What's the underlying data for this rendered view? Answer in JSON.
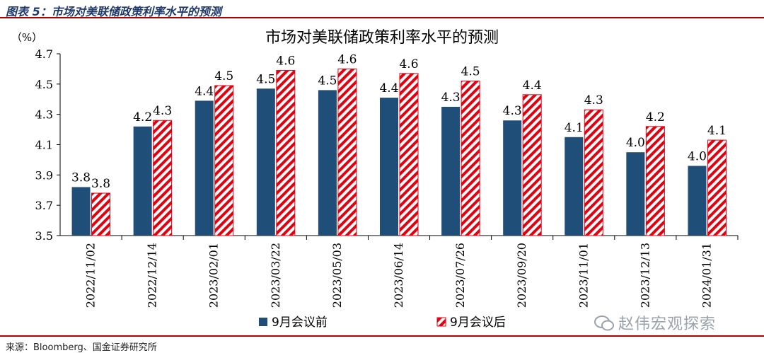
{
  "caption": "图表 5：市场对美联储政策利率水平的预测",
  "source": "来源：Bloomberg、国金证券研究所",
  "watermark": "赵伟宏观探索",
  "colors": {
    "before": "#1f4e79",
    "after": "#e3000f",
    "rule": "#b00000"
  },
  "chart_data": {
    "type": "bar",
    "title": "市场对美联储政策利率水平的预测",
    "ylabel": "（%）",
    "ylim": [
      3.5,
      4.7
    ],
    "yticks": [
      "3.5",
      "3.7",
      "3.9",
      "4.1",
      "4.3",
      "4.5",
      "4.7"
    ],
    "categories": [
      "2022/11/02",
      "2022/12/14",
      "2023/02/01",
      "2023/03/22",
      "2023/05/03",
      "2023/06/14",
      "2023/07/26",
      "2023/09/20",
      "2023/11/01",
      "2023/12/13",
      "2024/01/31"
    ],
    "series": [
      {
        "name": "9月会议前",
        "values": [
          3.82,
          4.22,
          4.39,
          4.47,
          4.46,
          4.41,
          4.35,
          4.26,
          4.15,
          4.05,
          3.96
        ],
        "labels": [
          "3.8",
          "4.2",
          "4.4",
          "4.5",
          "4.5",
          "4.4",
          "4.3",
          "4.3",
          "4.1",
          "4.0",
          "4.0"
        ]
      },
      {
        "name": "9月会议后",
        "values": [
          3.78,
          4.26,
          4.49,
          4.59,
          4.6,
          4.57,
          4.52,
          4.43,
          4.33,
          4.22,
          4.13
        ],
        "labels": [
          "3.8",
          "4.3",
          "4.5",
          "4.6",
          "4.6",
          "4.6",
          "4.5",
          "4.4",
          "4.3",
          "4.2",
          "4.1"
        ]
      }
    ],
    "legend_position": "bottom"
  }
}
